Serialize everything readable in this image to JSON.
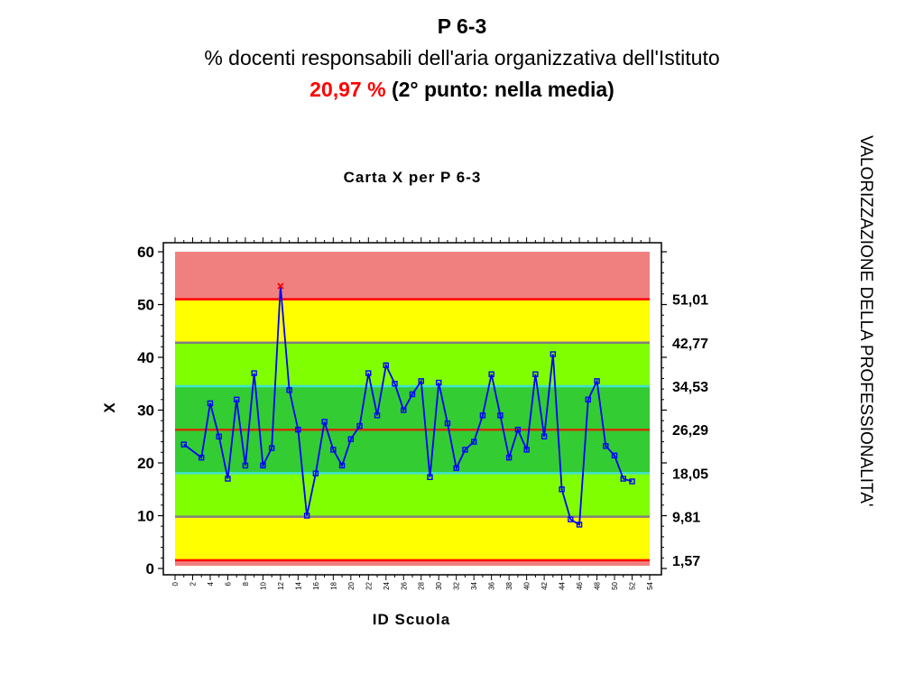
{
  "header": {
    "code": "P 6-3",
    "description": "% docenti responsabili dell'aria organizzativa dell'Istituto",
    "value": "20,97 %",
    "note": "(2° punto: nella media)"
  },
  "side_label": "VALORIZZAZIONE DELLA PROFESSIONALITA'",
  "colors": {
    "outer_band": "#f08080",
    "yellow_band": "#ffff00",
    "light_green_band": "#80ff00",
    "dark_green_band": "#33cc33",
    "series_line": "#0000ff",
    "limit_line": "#ff0000",
    "center_line": "#cc3300",
    "sigma1_line": "#40e0d0",
    "sigma2_line": "#808080",
    "header_value": "#ff0000"
  },
  "chart_data": {
    "type": "line",
    "title": "Carta X per P 6-3",
    "xlabel": "ID Scuola",
    "ylabel": "X",
    "xlim": [
      0,
      54
    ],
    "ylim": [
      0,
      60
    ],
    "x_ticks": [
      "0",
      "2",
      "4",
      "6",
      "8",
      "10",
      "12",
      "14",
      "16",
      "18",
      "20",
      "22",
      "24",
      "26",
      "28",
      "30",
      "32",
      "34",
      "36",
      "38",
      "40",
      "42",
      "44",
      "46",
      "48",
      "50",
      "52",
      "54"
    ],
    "y_ticks": [
      "0",
      "10",
      "20",
      "30",
      "40",
      "50",
      "60"
    ],
    "control_limits": [
      {
        "value": 51.01,
        "label": "51,01",
        "kind": "limit"
      },
      {
        "value": 42.77,
        "label": "42,77",
        "kind": "sigma2"
      },
      {
        "value": 34.53,
        "label": "34,53",
        "kind": "sigma1"
      },
      {
        "value": 26.29,
        "label": "26,29",
        "kind": "center"
      },
      {
        "value": 18.05,
        "label": "18,05",
        "kind": "sigma1"
      },
      {
        "value": 9.81,
        "label": "9,81",
        "kind": "sigma2"
      },
      {
        "value": 1.57,
        "label": "1,57",
        "kind": "limit"
      }
    ],
    "bands_ylim": [
      0.5,
      60
    ],
    "series": [
      {
        "x": [
          1,
          3,
          4,
          5,
          6,
          7,
          8,
          9,
          10,
          11,
          12,
          13,
          14,
          15,
          16,
          17,
          18,
          19,
          20,
          21,
          22,
          23,
          24,
          25,
          26,
          27,
          28,
          29,
          30,
          31,
          32,
          33,
          34,
          35,
          36,
          37,
          38,
          39,
          40,
          41,
          42,
          43,
          44,
          45,
          46,
          47,
          48,
          49,
          50,
          51,
          52
        ],
        "values": [
          23.5,
          21,
          31.3,
          25,
          17,
          32,
          19.5,
          37,
          19.5,
          22.8,
          53.5,
          33.8,
          26.3,
          10,
          18,
          27.8,
          22.5,
          19.5,
          24.5,
          27,
          37,
          29,
          38.5,
          35,
          30,
          33,
          35.5,
          17.3,
          35.2,
          27.5,
          19,
          22.5,
          24,
          29,
          36.8,
          29,
          21,
          26.3,
          22.5,
          36.8,
          25,
          40.6,
          15,
          9.3,
          8.3,
          32,
          35.5,
          23.2,
          21.4,
          17,
          16.5
        ],
        "out_of_control_x": [
          12
        ]
      }
    ]
  }
}
